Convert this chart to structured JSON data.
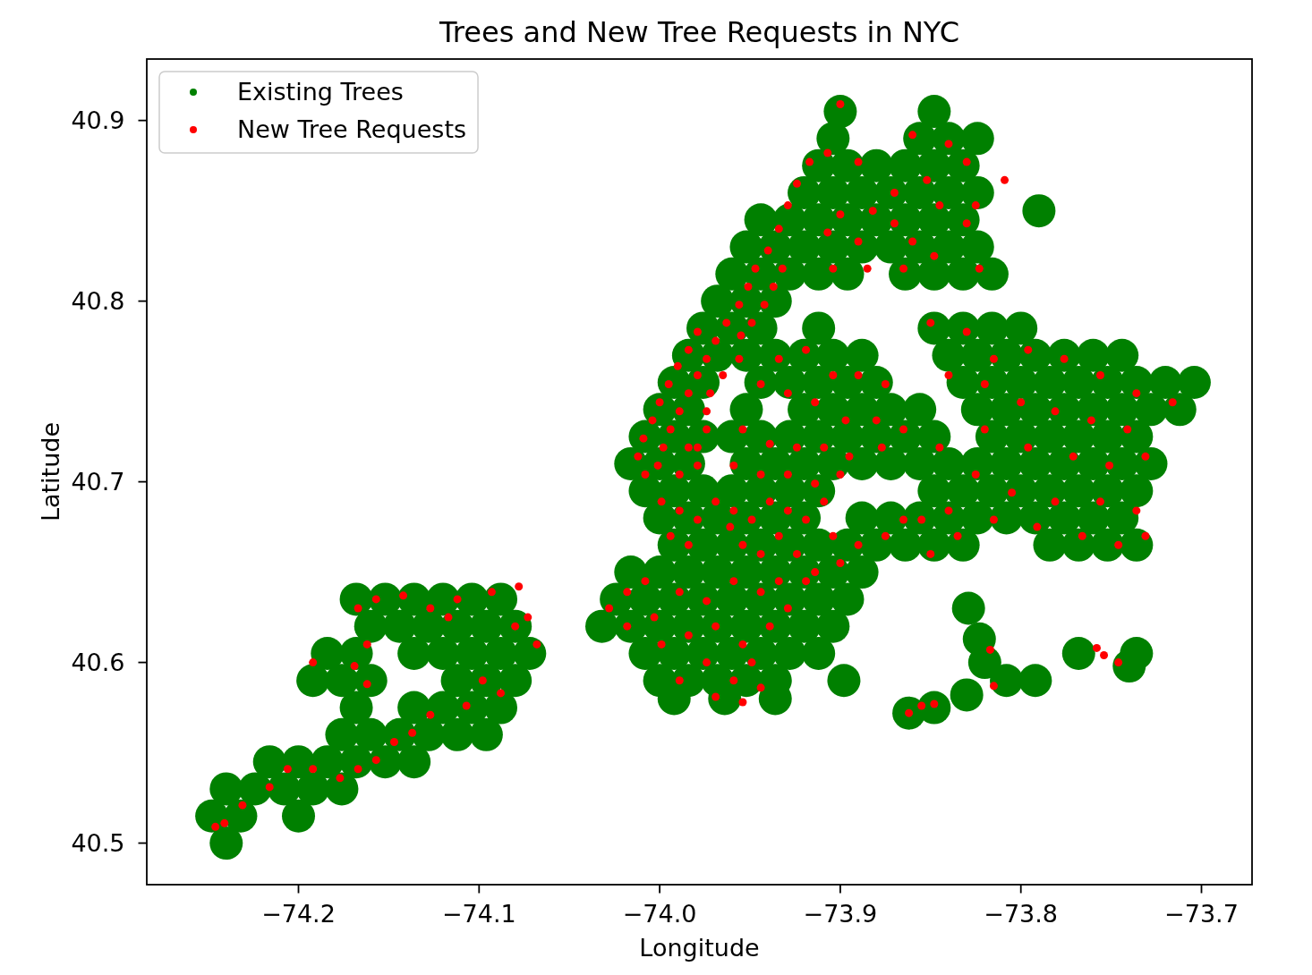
{
  "chart_data": {
    "type": "scatter",
    "title": "Trees and New Tree Requests in NYC",
    "xlabel": "Longitude",
    "ylabel": "Latitude",
    "xlim": [
      -74.284,
      -73.672
    ],
    "ylim": [
      40.477,
      40.934
    ],
    "xticks": [
      {
        "value": -74.2,
        "label": "−74.2"
      },
      {
        "value": -74.1,
        "label": "−74.1"
      },
      {
        "value": -74.0,
        "label": "−74.0"
      },
      {
        "value": -73.9,
        "label": "−73.9"
      },
      {
        "value": -73.8,
        "label": "−73.8"
      },
      {
        "value": -73.7,
        "label": "−73.7"
      }
    ],
    "yticks": [
      40.5,
      40.6,
      40.7,
      40.8,
      40.9
    ],
    "legend": "top left",
    "marker": "circle",
    "series": [
      {
        "name": "Existing Trees",
        "color": "#008000",
        "x": [
          -73.9,
          -73.848,
          -73.904,
          -73.856,
          -73.84,
          -73.824,
          -73.912,
          -73.896,
          -73.88,
          -73.864,
          -73.848,
          -73.832,
          -73.92,
          -73.904,
          -73.888,
          -73.872,
          -73.856,
          -73.84,
          -73.824,
          -73.79,
          -73.944,
          -73.928,
          -73.912,
          -73.896,
          -73.88,
          -73.864,
          -73.848,
          -73.832,
          -73.952,
          -73.936,
          -73.92,
          -73.904,
          -73.888,
          -73.872,
          -73.856,
          -73.84,
          -73.824,
          -73.96,
          -73.944,
          -73.928,
          -73.912,
          -73.896,
          -73.864,
          -73.848,
          -73.832,
          -73.816,
          -73.968,
          -73.952,
          -73.936,
          -73.976,
          -73.96,
          -73.944,
          -73.912,
          -73.848,
          -73.832,
          -73.816,
          -73.8,
          -73.984,
          -73.968,
          -73.952,
          -73.936,
          -73.92,
          -73.904,
          -73.888,
          -73.84,
          -73.824,
          -73.808,
          -73.792,
          -73.776,
          -73.76,
          -73.744,
          -73.992,
          -73.976,
          -73.944,
          -73.928,
          -73.912,
          -73.896,
          -73.88,
          -73.832,
          -73.816,
          -73.8,
          -73.784,
          -73.768,
          -73.752,
          -73.736,
          -73.72,
          -73.704,
          -74,
          -73.984,
          -73.952,
          -73.92,
          -73.904,
          -73.888,
          -73.872,
          -73.856,
          -73.824,
          -73.808,
          -73.792,
          -73.776,
          -73.76,
          -73.744,
          -73.728,
          -73.712,
          -74.008,
          -73.992,
          -73.976,
          -73.96,
          -73.944,
          -73.928,
          -73.912,
          -73.896,
          -73.88,
          -73.864,
          -73.848,
          -73.816,
          -73.8,
          -73.784,
          -73.768,
          -73.752,
          -73.736,
          -74.016,
          -74,
          -73.984,
          -73.952,
          -73.936,
          -73.92,
          -73.904,
          -73.888,
          -73.872,
          -73.856,
          -73.84,
          -73.824,
          -73.808,
          -73.792,
          -73.776,
          -73.76,
          -73.744,
          -73.728,
          -74.008,
          -73.992,
          -73.976,
          -73.96,
          -73.944,
          -73.928,
          -73.912,
          -73.848,
          -73.832,
          -73.816,
          -73.8,
          -73.784,
          -73.768,
          -73.752,
          -73.736,
          -74,
          -73.984,
          -73.968,
          -73.952,
          -73.936,
          -73.92,
          -73.888,
          -73.872,
          -73.856,
          -73.84,
          -73.824,
          -73.808,
          -73.792,
          -73.776,
          -73.76,
          -73.744,
          -73.992,
          -73.976,
          -73.96,
          -73.944,
          -73.928,
          -73.912,
          -73.896,
          -73.88,
          -73.864,
          -73.848,
          -73.832,
          -73.784,
          -73.768,
          -73.752,
          -73.736,
          -74.016,
          -74,
          -73.984,
          -73.968,
          -73.952,
          -73.936,
          -73.92,
          -73.904,
          -73.888,
          -74.024,
          -74.008,
          -73.992,
          -73.976,
          -73.96,
          -73.944,
          -73.928,
          -73.912,
          -73.896,
          -74.032,
          -74.016,
          -74,
          -73.984,
          -73.968,
          -73.952,
          -73.936,
          -73.92,
          -73.904,
          -74.008,
          -73.992,
          -73.976,
          -73.96,
          -73.944,
          -73.928,
          -73.912,
          -73.768,
          -73.736,
          -74,
          -73.984,
          -73.968,
          -73.952,
          -73.936,
          -73.898,
          -73.808,
          -73.792,
          -73.992,
          -73.964,
          -73.936,
          -73.848,
          -73.83,
          -73.862,
          -73.829,
          -73.823,
          -73.82,
          -73.74,
          -74.168,
          -74.152,
          -74.136,
          -74.12,
          -74.104,
          -74.088,
          -74.16,
          -74.144,
          -74.128,
          -74.112,
          -74.096,
          -74.08,
          -74.184,
          -74.168,
          -74.136,
          -74.12,
          -74.104,
          -74.088,
          -74.072,
          -74.192,
          -74.176,
          -74.16,
          -74.112,
          -74.096,
          -74.08,
          -74.168,
          -74.136,
          -74.12,
          -74.104,
          -74.088,
          -74.176,
          -74.16,
          -74.144,
          -74.128,
          -74.112,
          -74.096,
          -74.216,
          -74.2,
          -74.184,
          -74.168,
          -74.152,
          -74.136,
          -74.24,
          -74.224,
          -74.208,
          -74.192,
          -74.176,
          -74.248,
          -74.232,
          -74.2,
          -74.24
        ],
        "values": [
          40.905,
          40.905,
          40.89,
          40.89,
          40.89,
          40.89,
          40.875,
          40.875,
          40.875,
          40.875,
          40.875,
          40.875,
          40.86,
          40.86,
          40.86,
          40.86,
          40.86,
          40.86,
          40.86,
          40.85,
          40.845,
          40.845,
          40.845,
          40.845,
          40.845,
          40.845,
          40.845,
          40.845,
          40.83,
          40.83,
          40.83,
          40.83,
          40.83,
          40.83,
          40.83,
          40.83,
          40.83,
          40.815,
          40.815,
          40.815,
          40.815,
          40.815,
          40.815,
          40.815,
          40.815,
          40.815,
          40.8,
          40.8,
          40.8,
          40.785,
          40.785,
          40.785,
          40.785,
          40.785,
          40.785,
          40.785,
          40.785,
          40.77,
          40.77,
          40.77,
          40.77,
          40.77,
          40.77,
          40.77,
          40.77,
          40.77,
          40.77,
          40.77,
          40.77,
          40.77,
          40.77,
          40.755,
          40.755,
          40.755,
          40.755,
          40.755,
          40.755,
          40.755,
          40.755,
          40.755,
          40.755,
          40.755,
          40.755,
          40.755,
          40.755,
          40.755,
          40.755,
          40.74,
          40.74,
          40.74,
          40.74,
          40.74,
          40.74,
          40.74,
          40.74,
          40.74,
          40.74,
          40.74,
          40.74,
          40.74,
          40.74,
          40.74,
          40.74,
          40.725,
          40.725,
          40.725,
          40.725,
          40.725,
          40.725,
          40.725,
          40.725,
          40.725,
          40.725,
          40.725,
          40.725,
          40.725,
          40.725,
          40.725,
          40.725,
          40.725,
          40.71,
          40.71,
          40.71,
          40.71,
          40.71,
          40.71,
          40.71,
          40.71,
          40.71,
          40.71,
          40.71,
          40.71,
          40.71,
          40.71,
          40.71,
          40.71,
          40.71,
          40.71,
          40.695,
          40.695,
          40.695,
          40.695,
          40.695,
          40.695,
          40.695,
          40.695,
          40.695,
          40.695,
          40.695,
          40.695,
          40.695,
          40.695,
          40.695,
          40.68,
          40.68,
          40.68,
          40.68,
          40.68,
          40.68,
          40.68,
          40.68,
          40.68,
          40.68,
          40.68,
          40.68,
          40.68,
          40.68,
          40.68,
          40.68,
          40.665,
          40.665,
          40.665,
          40.665,
          40.665,
          40.665,
          40.665,
          40.665,
          40.665,
          40.665,
          40.665,
          40.665,
          40.665,
          40.665,
          40.665,
          40.65,
          40.65,
          40.65,
          40.65,
          40.65,
          40.65,
          40.65,
          40.65,
          40.65,
          40.635,
          40.635,
          40.635,
          40.635,
          40.635,
          40.635,
          40.635,
          40.635,
          40.635,
          40.62,
          40.62,
          40.62,
          40.62,
          40.62,
          40.62,
          40.62,
          40.62,
          40.62,
          40.605,
          40.605,
          40.605,
          40.605,
          40.605,
          40.605,
          40.605,
          40.605,
          40.605,
          40.59,
          40.59,
          40.59,
          40.59,
          40.59,
          40.59,
          40.59,
          40.59,
          40.58,
          40.58,
          40.58,
          40.575,
          40.582,
          40.572,
          40.63,
          40.613,
          40.6,
          40.598,
          40.635,
          40.635,
          40.635,
          40.635,
          40.635,
          40.635,
          40.62,
          40.62,
          40.62,
          40.62,
          40.62,
          40.62,
          40.605,
          40.605,
          40.605,
          40.605,
          40.605,
          40.605,
          40.605,
          40.59,
          40.59,
          40.59,
          40.59,
          40.59,
          40.59,
          40.575,
          40.575,
          40.575,
          40.575,
          40.575,
          40.56,
          40.56,
          40.56,
          40.56,
          40.56,
          40.56,
          40.545,
          40.545,
          40.545,
          40.545,
          40.545,
          40.545,
          40.53,
          40.53,
          40.53,
          40.53,
          40.53,
          40.515,
          40.515,
          40.515,
          40.5
        ]
      },
      {
        "name": "New Tree Requests",
        "color": "#ff0000",
        "x": [
          -73.9,
          -73.917,
          -73.907,
          -73.924,
          -73.929,
          -73.934,
          -73.94,
          -73.947,
          -73.951,
          -73.956,
          -73.963,
          -73.969,
          -73.974,
          -73.979,
          -73.984,
          -73.989,
          -73.994,
          -73.998,
          -74.001,
          -74.008,
          -73.979,
          -73.984,
          -73.99,
          -73.995,
          -74,
          -74.004,
          -74.009,
          -74.012,
          -73.949,
          -73.955,
          -73.956,
          -73.965,
          -73.972,
          -73.974,
          -73.979,
          -73.979,
          -73.989,
          -73.932,
          -73.937,
          -73.942,
          -73.974,
          -73.984,
          -73.89,
          -73.87,
          -73.87,
          -73.86,
          -73.89,
          -73.9,
          -73.907,
          -73.904,
          -73.885,
          -73.865,
          -73.848,
          -73.84,
          -73.83,
          -73.845,
          -73.83,
          -73.823,
          -73.825,
          -73.852,
          -73.86,
          -73.882,
          -73.809,
          -73.934,
          -73.919,
          -73.904,
          -73.89,
          -73.875,
          -73.944,
          -73.929,
          -73.914,
          -73.897,
          -73.88,
          -73.865,
          -73.954,
          -73.939,
          -73.924,
          -73.909,
          -73.895,
          -73.877,
          -73.959,
          -73.944,
          -73.929,
          -73.914,
          -73.9,
          -73.999,
          -73.989,
          -73.979,
          -73.969,
          -73.959,
          -73.949,
          -73.939,
          -73.929,
          -73.919,
          -73.909,
          -73.904,
          -73.994,
          -73.984,
          -73.961,
          -73.954,
          -73.944,
          -73.934,
          -73.924,
          -73.914,
          -73.9,
          -73.89,
          -73.875,
          -73.865,
          -73.855,
          -73.84,
          -74.028,
          -74.018,
          -74.008,
          -74.018,
          -74.003,
          -73.989,
          -73.974,
          -73.959,
          -73.944,
          -73.929,
          -73.999,
          -73.984,
          -73.969,
          -73.954,
          -73.939,
          -73.974,
          -73.959,
          -73.949,
          -73.944,
          -73.969,
          -73.989,
          -73.954,
          -73.934,
          -73.919,
          -73.85,
          -73.83,
          -73.815,
          -73.796,
          -73.776,
          -73.756,
          -73.736,
          -73.716,
          -73.84,
          -73.82,
          -73.8,
          -73.781,
          -73.761,
          -73.741,
          -73.82,
          -73.796,
          -73.771,
          -73.751,
          -73.731,
          -73.845,
          -73.825,
          -73.805,
          -73.781,
          -73.756,
          -73.736,
          -73.835,
          -73.815,
          -73.791,
          -73.766,
          -73.746,
          -73.731,
          -73.85,
          -73.862,
          -73.855,
          -73.848,
          -73.815,
          -73.754,
          -73.746,
          -73.758,
          -73.817,
          -74.167,
          -74.157,
          -74.142,
          -74.127,
          -74.112,
          -74.093,
          -74.078,
          -74.08,
          -74.068,
          -74.162,
          -74.162,
          -74.098,
          -74.088,
          -74.107,
          -74.127,
          -74.137,
          -74.147,
          -74.157,
          -74.167,
          -74.177,
          -74.192,
          -74.216,
          -74.206,
          -74.241,
          -74.246,
          -74.231,
          -74.117,
          -74.073,
          -74.169,
          -74.192
        ],
        "values": [
          40.909,
          40.877,
          40.882,
          40.865,
          40.853,
          40.84,
          40.828,
          40.818,
          40.808,
          40.798,
          40.788,
          40.778,
          40.768,
          40.759,
          40.749,
          40.739,
          40.729,
          40.719,
          40.709,
          40.704,
          40.783,
          40.773,
          40.764,
          40.754,
          40.744,
          40.734,
          40.724,
          40.714,
          40.788,
          40.781,
          40.768,
          40.759,
          40.749,
          40.739,
          40.719,
          40.709,
          40.704,
          40.818,
          40.808,
          40.798,
          40.729,
          40.719,
          40.877,
          40.86,
          40.843,
          40.833,
          40.833,
          40.848,
          40.838,
          40.818,
          40.818,
          40.818,
          40.825,
          40.887,
          40.877,
          40.853,
          40.843,
          40.818,
          40.853,
          40.867,
          40.892,
          40.85,
          40.867,
          40.768,
          40.773,
          40.759,
          40.759,
          40.754,
          40.754,
          40.749,
          40.744,
          40.734,
          40.734,
          40.729,
          40.729,
          40.721,
          40.719,
          40.719,
          40.714,
          40.719,
          40.709,
          40.704,
          40.704,
          40.699,
          40.704,
          40.689,
          40.684,
          40.679,
          40.689,
          40.684,
          40.679,
          40.689,
          40.684,
          40.679,
          40.689,
          40.67,
          40.67,
          40.665,
          40.675,
          40.665,
          40.66,
          40.67,
          40.66,
          40.65,
          40.655,
          40.665,
          40.67,
          40.679,
          40.679,
          40.684,
          40.63,
          40.639,
          40.645,
          40.62,
          40.625,
          40.639,
          40.634,
          40.645,
          40.639,
          40.63,
          40.61,
          40.615,
          40.62,
          40.61,
          40.62,
          40.6,
          40.59,
          40.6,
          40.586,
          40.581,
          40.59,
          40.578,
          40.645,
          40.645,
          40.788,
          40.783,
          40.768,
          40.773,
          40.768,
          40.759,
          40.749,
          40.744,
          40.759,
          40.754,
          40.744,
          40.739,
          40.734,
          40.729,
          40.729,
          40.719,
          40.714,
          40.709,
          40.714,
          40.719,
          40.704,
          40.694,
          40.689,
          40.689,
          40.684,
          40.67,
          40.679,
          40.675,
          40.67,
          40.665,
          40.67,
          40.66,
          40.572,
          40.576,
          40.577,
          40.587,
          40.604,
          40.6,
          40.608,
          40.607,
          40.63,
          40.635,
          40.637,
          40.63,
          40.635,
          40.639,
          40.642,
          40.62,
          40.61,
          40.61,
          40.588,
          40.59,
          40.583,
          40.576,
          40.571,
          40.561,
          40.556,
          40.546,
          40.541,
          40.536,
          40.541,
          40.531,
          40.541,
          40.511,
          40.509,
          40.521,
          40.625,
          40.625,
          40.598,
          40.6
        ]
      }
    ]
  }
}
